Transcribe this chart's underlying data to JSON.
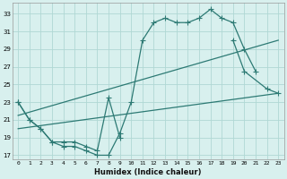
{
  "xlabel": "Humidex (Indice chaleur)",
  "xlim": [
    -0.5,
    23.5
  ],
  "ylim": [
    16.5,
    34.2
  ],
  "xticks": [
    0,
    1,
    2,
    3,
    4,
    5,
    6,
    7,
    8,
    9,
    10,
    11,
    12,
    13,
    14,
    15,
    16,
    17,
    18,
    19,
    20,
    21,
    22,
    23
  ],
  "yticks": [
    17,
    19,
    21,
    23,
    25,
    27,
    29,
    31,
    33
  ],
  "bg_color": "#d8f0ee",
  "grid_color": "#b0d8d4",
  "line_color": "#2d7a74",
  "line1_x": [
    0,
    1,
    2,
    3,
    4,
    5,
    6,
    7,
    8,
    9,
    10,
    11,
    12,
    13,
    14,
    15,
    16,
    17,
    18,
    19,
    20,
    21
  ],
  "line1_y": [
    23,
    21,
    20,
    18.5,
    18,
    18,
    17.5,
    17,
    17,
    19.5,
    23,
    30,
    32,
    32.5,
    32,
    32,
    32.5,
    33.5,
    32.5,
    32,
    29,
    26.5
  ],
  "line2_x": [
    0,
    1,
    2,
    3,
    4,
    5,
    6,
    7,
    8,
    9,
    19,
    20,
    22,
    23
  ],
  "line2_y": [
    23,
    21,
    20,
    18.5,
    18.5,
    18.5,
    18,
    17.5,
    23.5,
    19,
    30,
    26.5,
    24.5,
    24
  ],
  "line3_x": [
    0,
    23
  ],
  "line3_y": [
    20,
    24
  ],
  "line4_x": [
    0,
    23
  ],
  "line4_y": [
    21.5,
    30
  ]
}
